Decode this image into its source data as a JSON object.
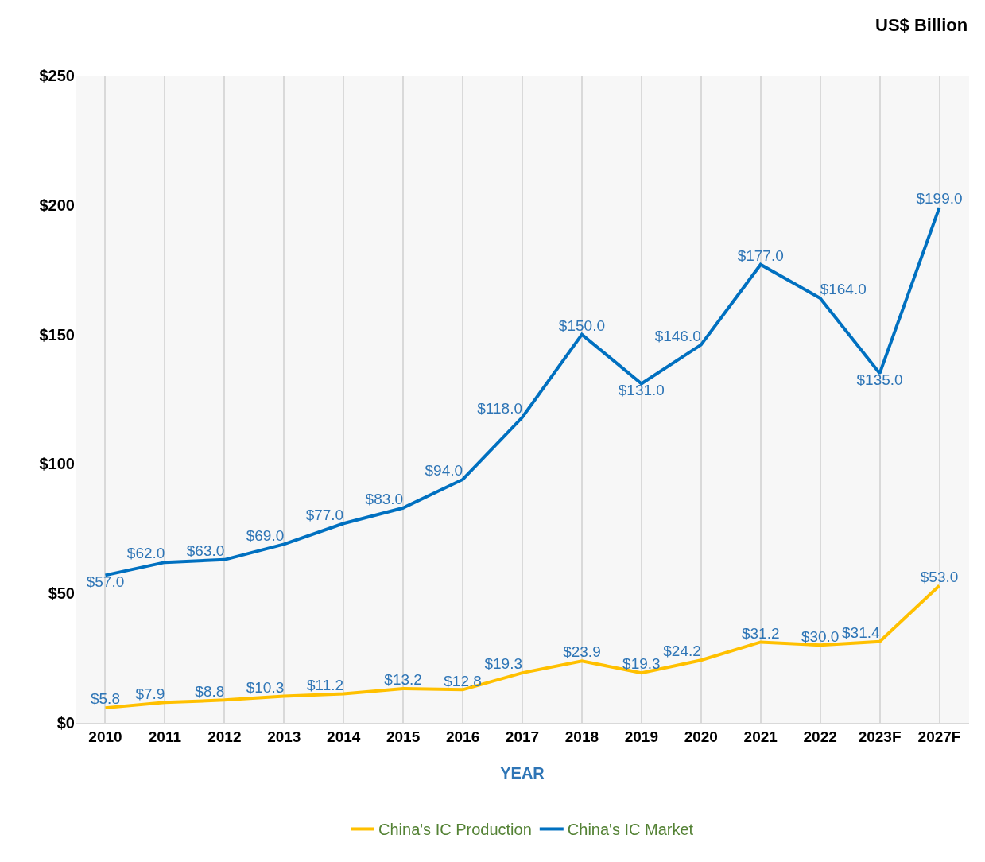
{
  "chart_data": {
    "type": "line",
    "xlabel": "YEAR",
    "annotations": [
      "US$ Billion"
    ],
    "categories": [
      "2010",
      "2011",
      "2012",
      "2013",
      "2014",
      "2015",
      "2016",
      "2017",
      "2018",
      "2019",
      "2020",
      "2021",
      "2022",
      "2023F",
      "2027F"
    ],
    "series": [
      {
        "name": "China's IC Production",
        "color": "#ffc000",
        "values": [
          5.8,
          7.9,
          8.8,
          10.3,
          11.2,
          13.2,
          12.8,
          19.3,
          23.9,
          19.3,
          24.2,
          31.2,
          30.0,
          31.4,
          53.0
        ],
        "value_labels": [
          "$5.8",
          "$7.9",
          "$8.8",
          "$10.3",
          "$11.2",
          "$13.2",
          "$12.8",
          "$19.3",
          "$23.9",
          "$19.3",
          "$24.2",
          "$31.2",
          "$30.0",
          "$31.4",
          "$53.0"
        ]
      },
      {
        "name": "China's IC Market",
        "color": "#0070c0",
        "values": [
          57,
          62,
          63,
          69,
          77,
          83,
          94,
          118,
          150,
          131,
          146,
          177,
          164,
          135,
          199
        ],
        "value_labels": [
          "$57.0",
          "$62.0",
          "$63.0",
          "$69.0",
          "$77.0",
          "$83.0",
          "$94.0",
          "$118.0",
          "$150.0",
          "$131.0",
          "$146.0",
          "$177.0",
          "$164.0",
          "$135.0",
          "$199.0"
        ]
      }
    ],
    "ylim": [
      0,
      250
    ],
    "yticks": [
      {
        "value": 0,
        "label": "$0"
      },
      {
        "value": 50,
        "label": "$50"
      },
      {
        "value": 100,
        "label": "$100"
      },
      {
        "value": 150,
        "label": "$150"
      },
      {
        "value": 200,
        "label": "$200"
      },
      {
        "value": 250,
        "label": "$250"
      }
    ],
    "grid": "x",
    "legend": "bottom",
    "marker": "none",
    "line_style": "solid"
  }
}
